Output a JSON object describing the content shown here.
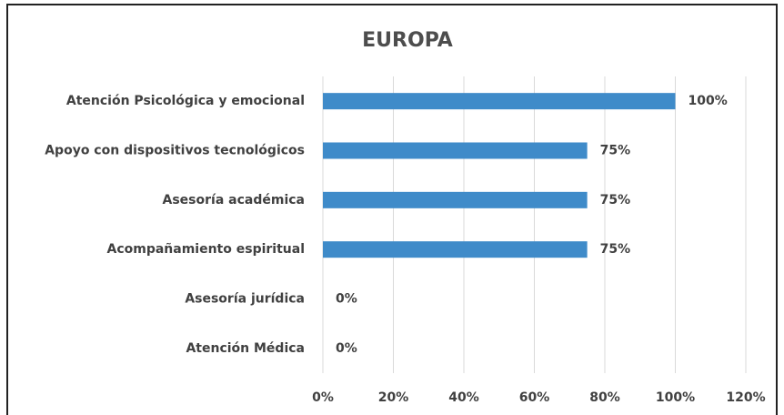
{
  "chart_data": {
    "type": "barh",
    "title": "EUROPA",
    "categories": [
      "Atención Psicológica y emocional",
      "Apoyo con dispositivos tecnológicos",
      "Asesoría académica",
      "Acompañamiento espiritual",
      "Asesoría jurídica",
      "Atención Médica"
    ],
    "values": [
      100,
      75,
      75,
      75,
      0,
      0
    ],
    "value_labels": [
      "100%",
      "75%",
      "75%",
      "75%",
      "0%",
      "0%"
    ],
    "color": "#3f8bc9",
    "xlim": [
      0,
      120
    ],
    "xticks": [
      {
        "value": 0,
        "label": "0%"
      },
      {
        "value": 20,
        "label": "20%"
      },
      {
        "value": 40,
        "label": "40%"
      },
      {
        "value": 60,
        "label": "60%"
      },
      {
        "value": 80,
        "label": "80%"
      },
      {
        "value": 100,
        "label": "100%"
      },
      {
        "value": 120,
        "label": "120%"
      }
    ],
    "grid": true
  }
}
